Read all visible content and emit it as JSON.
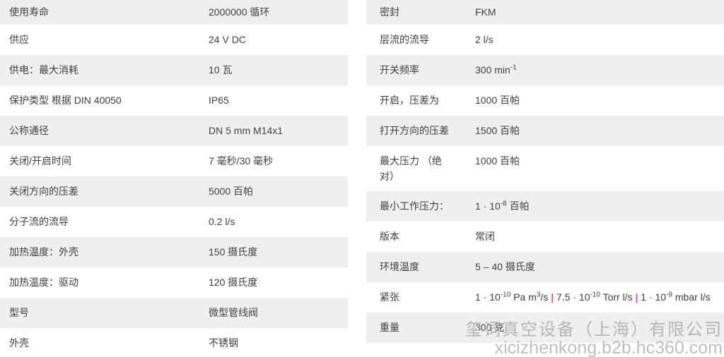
{
  "colors": {
    "row_shaded_bg": "#efefef",
    "text": "#404040",
    "pipe_accent": "#e0507e",
    "watermark": "#b5b5b5",
    "background": "#ffffff"
  },
  "left_table": {
    "rows": [
      {
        "label": "使用寿命",
        "value": "2000000 循环"
      },
      {
        "label": "供应",
        "value": "24 V DC"
      },
      {
        "label": "供电：最大消耗",
        "value": "10 瓦"
      },
      {
        "label": "保护类型 根据 DIN 40050",
        "value": "IP65"
      },
      {
        "label": "公称通径",
        "value": "DN 5 mm M14x1"
      },
      {
        "label": "关闭/开启时间",
        "value": "7 毫秒/30 毫秒"
      },
      {
        "label": "关闭方向的压差",
        "value": "5000 百帕"
      },
      {
        "label": "分子流的流导",
        "value": "0.2 l/s"
      },
      {
        "label": "加热温度：外壳",
        "value": "150 摄氏度"
      },
      {
        "label": "加热温度：驱动",
        "value": "120 摄氏度"
      },
      {
        "label": "型号",
        "value": "微型管线阀"
      },
      {
        "label": "外壳",
        "value": "不锈钢"
      }
    ]
  },
  "right_table": {
    "rows": [
      {
        "label": "密封",
        "value": "FKM"
      },
      {
        "label": "层流的流导",
        "value": "2 l/s"
      },
      {
        "label": "开关频率",
        "value_segments": [
          {
            "t": "300 min"
          },
          {
            "t": "-1",
            "sup": true
          }
        ]
      },
      {
        "label": "开启，压差为",
        "value": "1000 百帕"
      },
      {
        "label": "打开方向的压差",
        "value": "1500 百帕"
      },
      {
        "label": "最大压力 （绝对）",
        "value": "1000 百帕"
      },
      {
        "label": "最小工作压力：",
        "value_segments": [
          {
            "t": "1 · 10"
          },
          {
            "t": "-8",
            "sup": true
          },
          {
            "t": " 百帕"
          }
        ]
      },
      {
        "label": "版本",
        "value": "常闭"
      },
      {
        "label": "环境温度",
        "value": "5 – 40 摄氏度"
      },
      {
        "label": "紧张",
        "value_segments": [
          {
            "t": "1 · 10"
          },
          {
            "t": "-10",
            "sup": true
          },
          {
            "t": " Pa m"
          },
          {
            "t": "3",
            "sup": true
          },
          {
            "t": "/s "
          },
          {
            "t": "|",
            "pipe": true
          },
          {
            "t": " 7.5 · 10"
          },
          {
            "t": "-10",
            "sup": true
          },
          {
            "t": " Torr l/s "
          },
          {
            "t": "|",
            "pipe": true
          },
          {
            "t": " 1 · 10"
          },
          {
            "t": "-9",
            "sup": true
          },
          {
            "t": " mbar l/s"
          }
        ]
      },
      {
        "label": "重量",
        "value": "300 克"
      }
    ]
  },
  "watermark": {
    "company": "玺词真空设备（上海）有限公司",
    "url": "xicizhenkong.b2b.hc360.com"
  }
}
